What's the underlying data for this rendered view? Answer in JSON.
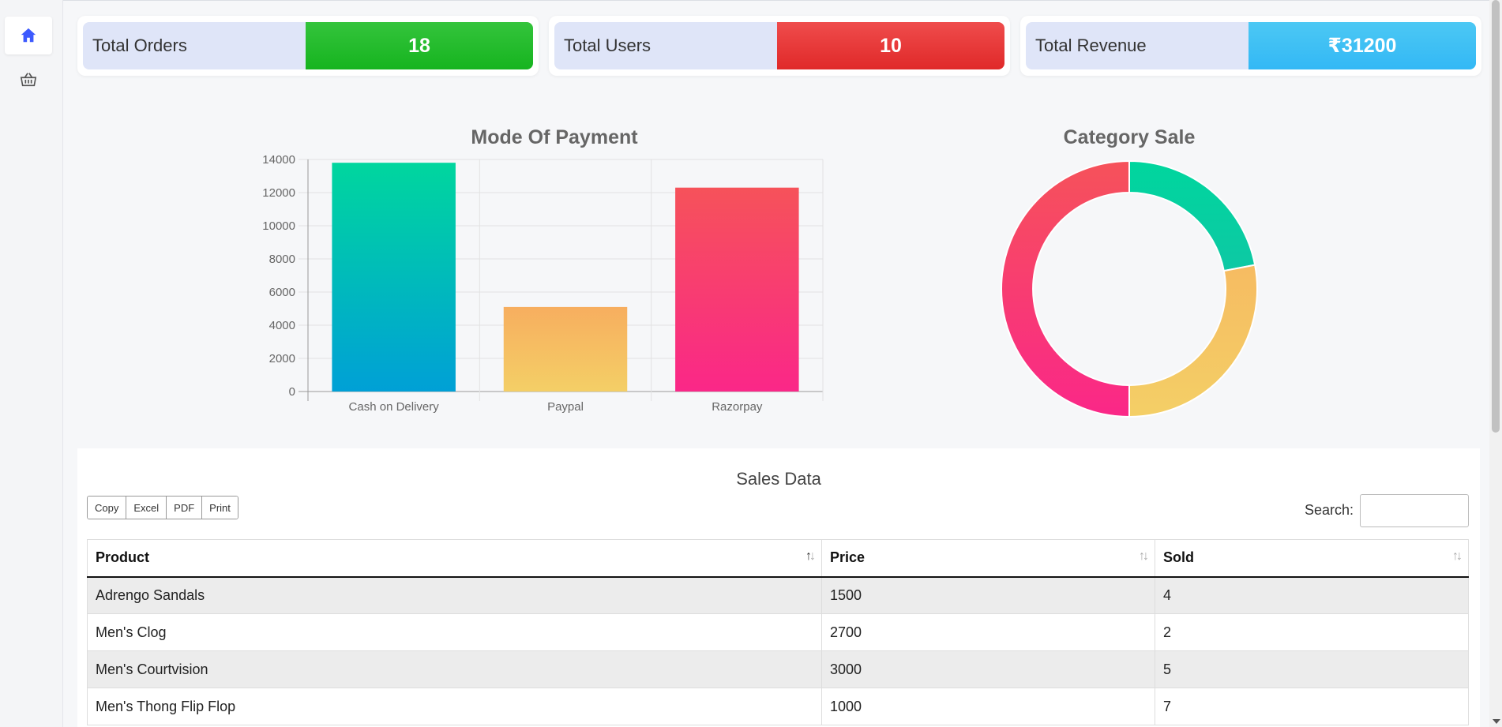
{
  "sidebar": {
    "items": [
      {
        "icon": "home-icon",
        "active": true
      },
      {
        "icon": "basket-icon",
        "active": false
      }
    ]
  },
  "stats": {
    "orders": {
      "label": "Total Orders",
      "value": "18",
      "color": "#1fb928"
    },
    "users": {
      "label": "Total Users",
      "value": "10",
      "color": "#e53232"
    },
    "revenue": {
      "label": "Total Revenue",
      "value": "₹31200",
      "color": "#3bbcf5"
    }
  },
  "chart_data": [
    {
      "type": "bar",
      "title": "Mode Of Payment",
      "categories": [
        "Cash on Delivery",
        "Paypal",
        "Razorpay"
      ],
      "values": [
        13800,
        5100,
        12300
      ],
      "ylim": [
        0,
        14000
      ],
      "yticks": [
        0,
        2000,
        4000,
        6000,
        8000,
        10000,
        12000,
        14000
      ],
      "grid": true,
      "colors": [
        [
          "#00d69e",
          "#00a0d6"
        ],
        [
          "#f7ae5f",
          "#f4cf66"
        ],
        [
          "#f6525a",
          "#fa2788"
        ]
      ]
    },
    {
      "type": "pie",
      "title": "Category Sale",
      "donut": true,
      "values": [
        22,
        28,
        50
      ],
      "colors": [
        [
          "#00d69e",
          "#1fb6ac"
        ],
        [
          "#f7ae5f",
          "#f4cf66"
        ],
        [
          "#f6525a",
          "#fa2788"
        ]
      ]
    }
  ],
  "table": {
    "title": "Sales Data",
    "buttons": [
      "Copy",
      "Excel",
      "PDF",
      "Print"
    ],
    "search_label": "Search:",
    "search_value": "",
    "columns": [
      "Product",
      "Price",
      "Sold"
    ],
    "rows": [
      [
        "Adrengo Sandals",
        "1500",
        "4"
      ],
      [
        "Men's Clog",
        "2700",
        "2"
      ],
      [
        "Men's Courtvision",
        "3000",
        "5"
      ],
      [
        "Men's Thong Flip Flop",
        "1000",
        "7"
      ]
    ]
  }
}
